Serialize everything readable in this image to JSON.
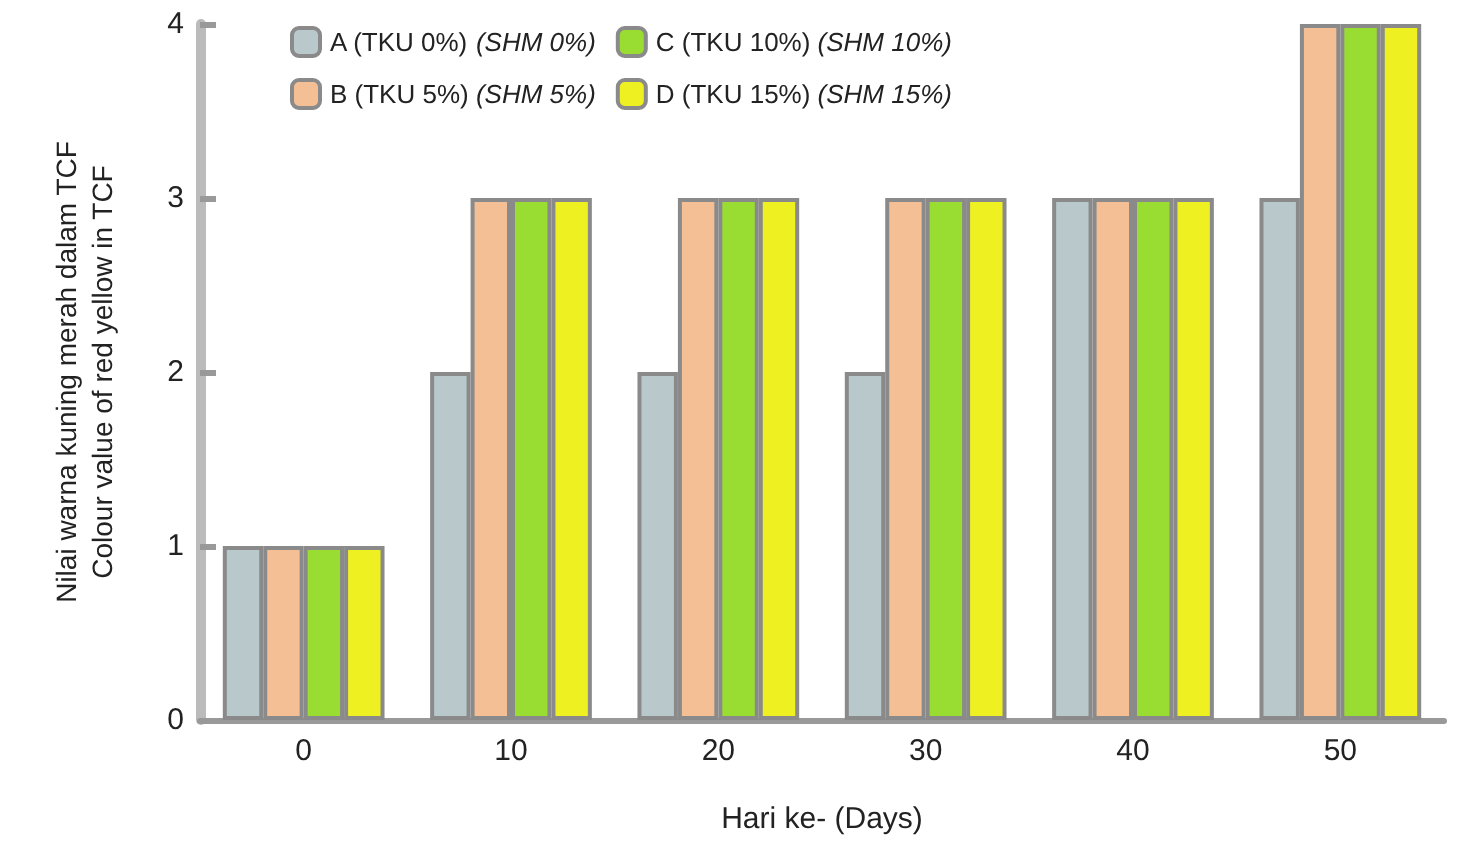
{
  "chart_data": {
    "type": "bar",
    "xlabel": "Hari ke- (Days)",
    "ylabel": "Nilai warna kuning merah dalam TCF\nColour value of red yellow in TCF",
    "categories": [
      "0",
      "10",
      "20",
      "30",
      "40",
      "50"
    ],
    "series": [
      {
        "name": "A (TKU 0%) (SHM 0%)",
        "color": "#b8c8cb",
        "values": [
          1,
          2,
          2,
          2,
          3,
          3
        ]
      },
      {
        "name": "B (TKU 5%) (SHM 5%)",
        "color": "#f5bf95",
        "values": [
          1,
          3,
          3,
          3,
          3,
          4
        ]
      },
      {
        "name": "C (TKU 10%) (SHM 10%)",
        "color": "#99dd33",
        "values": [
          1,
          3,
          3,
          3,
          3,
          4
        ]
      },
      {
        "name": "D (TKU 15%) (SHM 15%)",
        "color": "#eef022",
        "values": [
          1,
          3,
          3,
          3,
          3,
          4
        ]
      }
    ],
    "ylim": [
      0,
      4
    ],
    "yticks": [
      0,
      1,
      2,
      3,
      4
    ],
    "grid": false,
    "legend": "top"
  }
}
